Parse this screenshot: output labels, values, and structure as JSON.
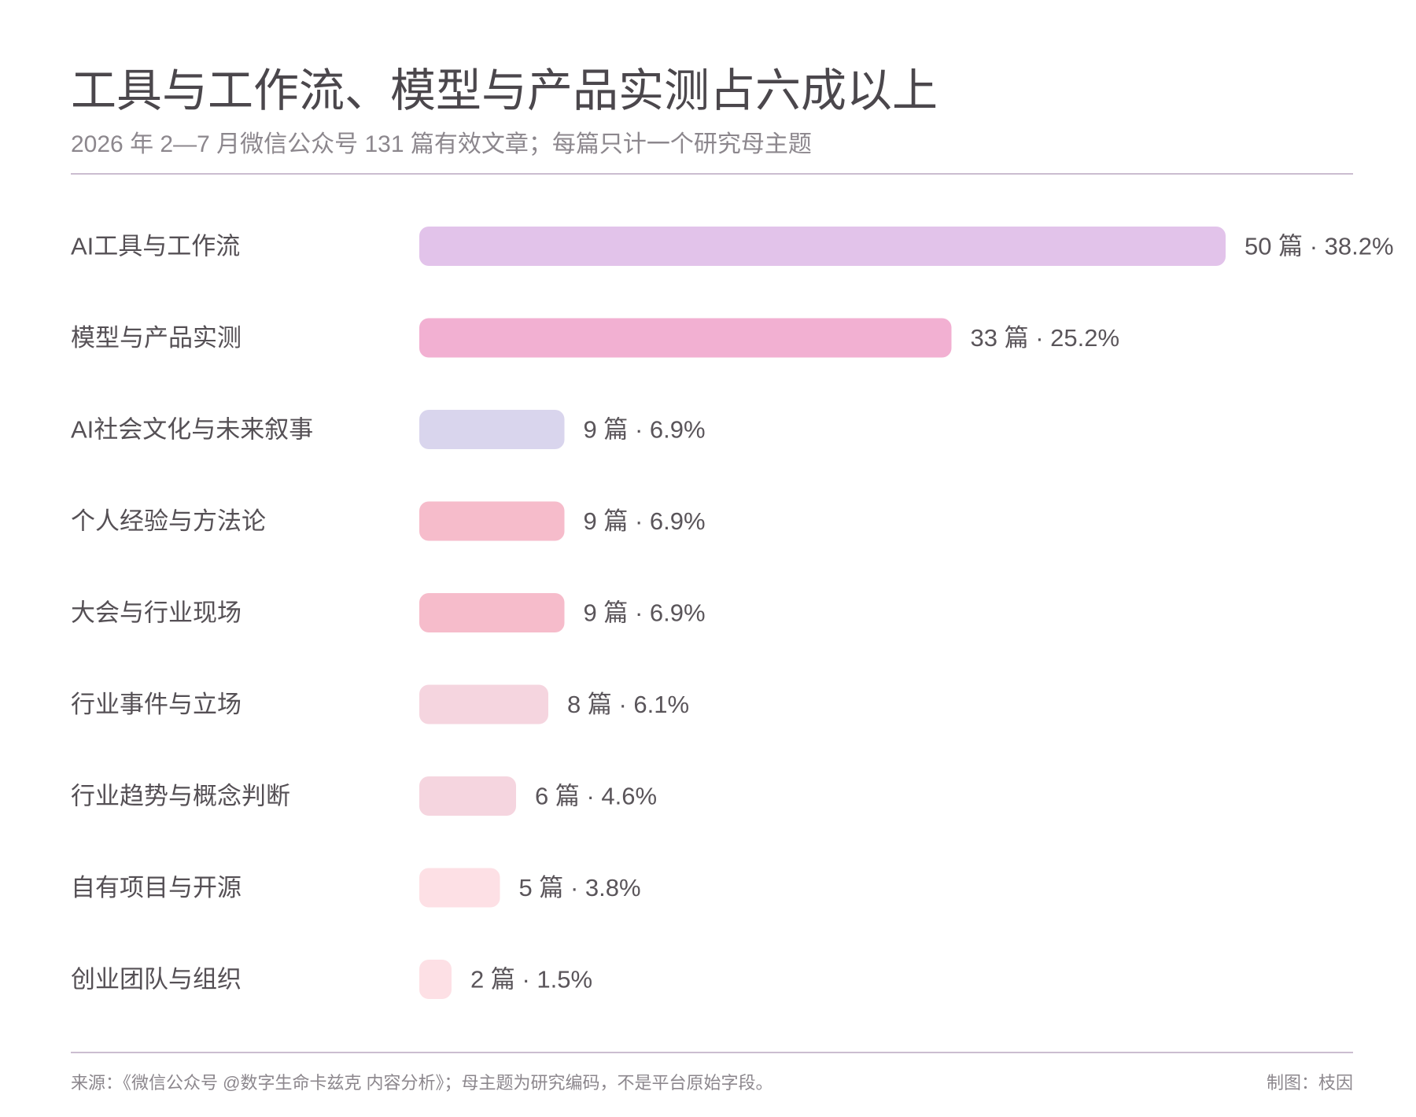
{
  "chart_data": {
    "type": "bar",
    "orientation": "horizontal",
    "title": "工具与工作流、模型与产品实测占六成以上",
    "subtitle": "2026 年 2—7 月微信公众号 131 篇有效文章；每篇只计一个研究母主题",
    "unit": "篇",
    "categories": [
      "AI工具与工作流",
      "模型与产品实测",
      "AI社会文化与未来叙事",
      "个人经验与方法论",
      "大会与行业现场",
      "行业事件与立场",
      "行业趋势与概念判断",
      "自有项目与开源",
      "创业团队与组织"
    ],
    "values": [
      50,
      33,
      9,
      9,
      9,
      8,
      6,
      5,
      2
    ],
    "percent_labels": [
      "38.2%",
      "25.2%",
      "6.9%",
      "6.9%",
      "6.9%",
      "6.1%",
      "4.6%",
      "3.8%",
      "1.5%"
    ],
    "value_labels": [
      "50 篇 · 38.2%",
      "33 篇 · 25.2%",
      "9 篇 · 6.9%",
      "9 篇 · 6.9%",
      "9 篇 · 6.9%",
      "8 篇 · 6.1%",
      "6 篇 · 4.6%",
      "5 篇 · 3.8%",
      "2 篇 · 1.5%"
    ],
    "colors": [
      "#e2c3ea",
      "#f2b0d2",
      "#d9d5ed",
      "#f6bccb",
      "#f6bccb",
      "#f5d5df",
      "#f5d5df",
      "#fde0e5",
      "#fde0e5"
    ],
    "xlim": [
      0,
      50
    ],
    "grid": false,
    "legend": "none"
  },
  "footer": {
    "source": "来源：《微信公众号 @数字生命卡兹克 内容分析》；母主题为研究编码，不是平台原始字段。",
    "credit": "制图：枝因"
  }
}
